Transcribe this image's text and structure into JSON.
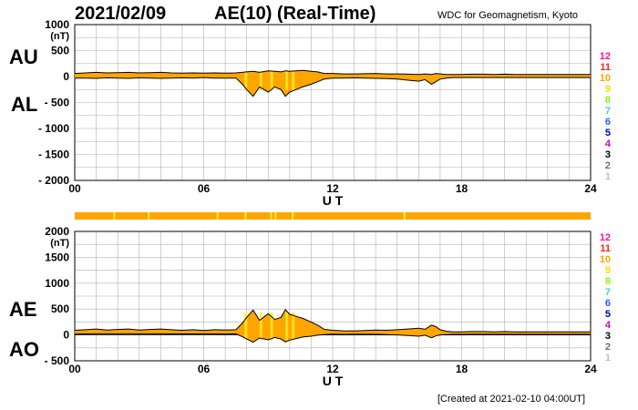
{
  "header": {
    "date": "2021/02/09",
    "title": "AE(10) (Real-Time)",
    "source": "WDC for Geomagnetism, Kyoto",
    "created": "[Created at 2021-02-10 04:00UT]"
  },
  "panel_labels": {
    "au": "AU",
    "al": "AL",
    "ae": "AE",
    "ao": "AO"
  },
  "colors": {
    "fill_orange": "#FFA500",
    "fill_yellow": "#FFEE22",
    "line": "#000000",
    "grid": "#b0b0b0"
  },
  "station_count_legend": [
    {
      "label": "12",
      "color": "#ff1493"
    },
    {
      "label": "11",
      "color": "#ff2020"
    },
    {
      "label": "10",
      "color": "#ffa500"
    },
    {
      "label": "9",
      "color": "#f0e000"
    },
    {
      "label": "8",
      "color": "#90ee20"
    },
    {
      "label": "7",
      "color": "#40d0e0"
    },
    {
      "label": "6",
      "color": "#2060ff"
    },
    {
      "label": "5",
      "color": "#0000b0"
    },
    {
      "label": "4",
      "color": "#d000d0"
    },
    {
      "label": "3",
      "color": "#000000"
    },
    {
      "label": "2",
      "color": "#707070"
    },
    {
      "label": "1",
      "color": "#c0c0c0"
    }
  ],
  "chart_data": [
    {
      "type": "area",
      "panel": "AU/AL",
      "xlabel": "U T",
      "ylabel": "(nT)",
      "xlim": [
        0,
        24
      ],
      "ylim": [
        -2000,
        1000
      ],
      "xticks": [
        "00",
        "06",
        "12",
        "18",
        "24"
      ],
      "yticks": [
        "1000",
        "500",
        "0",
        "- 500",
        "- 1000",
        "- 1500",
        "- 2000"
      ],
      "ytick_values": [
        1000,
        500,
        0,
        -500,
        -1000,
        -1500,
        -2000
      ],
      "x": [
        0,
        0.5,
        1,
        1.5,
        2,
        2.5,
        3,
        3.5,
        4,
        4.5,
        5,
        5.5,
        6,
        6.5,
        7,
        7.5,
        7.8,
        8,
        8.3,
        8.6,
        9,
        9.3,
        9.6,
        9.8,
        10,
        10.3,
        10.6,
        11,
        11.3,
        11.6,
        12,
        12.5,
        13,
        13.5,
        14,
        14.5,
        15,
        15.5,
        16,
        16.3,
        16.6,
        16.8,
        17,
        17.3,
        17.6,
        18,
        18.5,
        19,
        19.5,
        20,
        20.5,
        21,
        21.5,
        22,
        22.5,
        23,
        23.5,
        24
      ],
      "series": [
        {
          "name": "AU",
          "values": [
            60,
            70,
            80,
            70,
            75,
            80,
            70,
            75,
            80,
            70,
            65,
            70,
            65,
            70,
            65,
            70,
            80,
            90,
            100,
            80,
            110,
            100,
            90,
            110,
            100,
            110,
            120,
            100,
            90,
            60,
            60,
            50,
            50,
            55,
            60,
            50,
            50,
            45,
            40,
            50,
            40,
            60,
            50,
            40,
            40,
            40,
            45,
            45,
            40,
            45,
            40,
            40,
            40,
            40,
            40,
            40,
            40,
            40
          ]
        },
        {
          "name": "AL",
          "values": [
            -30,
            -30,
            -35,
            -25,
            -30,
            -35,
            -25,
            -30,
            -35,
            -30,
            -25,
            -30,
            -20,
            -30,
            -30,
            -30,
            -150,
            -250,
            -380,
            -200,
            -300,
            -200,
            -250,
            -380,
            -300,
            -250,
            -200,
            -150,
            -100,
            -50,
            -30,
            -30,
            -25,
            -30,
            -35,
            -40,
            -50,
            -70,
            -90,
            -60,
            -150,
            -100,
            -50,
            -30,
            -20,
            -20,
            -20,
            -20,
            -20,
            -20,
            -20,
            -20,
            -20,
            -20,
            -20,
            -20,
            -20,
            -20
          ]
        }
      ]
    },
    {
      "type": "area",
      "panel": "AE/AO",
      "xlabel": "U T",
      "ylabel": "(nT)",
      "xlim": [
        0,
        24
      ],
      "ylim": [
        -500,
        2000
      ],
      "xticks": [
        "00",
        "06",
        "12",
        "18",
        "24"
      ],
      "yticks": [
        "2000",
        "1500",
        "1000",
        "500",
        "0",
        "- 500"
      ],
      "ytick_values": [
        2000,
        1500,
        1000,
        500,
        0,
        -500
      ],
      "x": [
        0,
        0.5,
        1,
        1.5,
        2,
        2.5,
        3,
        3.5,
        4,
        4.5,
        5,
        5.5,
        6,
        6.5,
        7,
        7.5,
        7.8,
        8,
        8.3,
        8.6,
        9,
        9.3,
        9.6,
        9.8,
        10,
        10.3,
        10.6,
        11,
        11.3,
        11.6,
        12,
        12.5,
        13,
        13.5,
        14,
        14.5,
        15,
        15.5,
        16,
        16.3,
        16.6,
        16.8,
        17,
        17.3,
        17.6,
        18,
        18.5,
        19,
        19.5,
        20,
        20.5,
        21,
        21.5,
        22,
        22.5,
        23,
        23.5,
        24
      ],
      "series": [
        {
          "name": "AE",
          "values": [
            90,
            100,
            115,
            95,
            105,
            115,
            95,
            105,
            115,
            100,
            90,
            100,
            85,
            100,
            95,
            100,
            230,
            340,
            480,
            280,
            410,
            300,
            340,
            490,
            400,
            360,
            320,
            250,
            190,
            110,
            90,
            80,
            75,
            85,
            95,
            90,
            100,
            115,
            130,
            110,
            190,
            160,
            100,
            70,
            60,
            60,
            65,
            65,
            60,
            65,
            60,
            60,
            60,
            60,
            60,
            60,
            60,
            60
          ]
        },
        {
          "name": "AO",
          "values": [
            15,
            20,
            22,
            22,
            22,
            22,
            22,
            22,
            22,
            20,
            20,
            20,
            22,
            20,
            18,
            20,
            -35,
            -80,
            -140,
            -60,
            -95,
            -50,
            -80,
            -135,
            -100,
            -70,
            -40,
            -25,
            -5,
            5,
            15,
            10,
            12,
            12,
            12,
            5,
            0,
            -12,
            -25,
            -5,
            -55,
            -20,
            0,
            5,
            10,
            10,
            12,
            12,
            10,
            12,
            10,
            10,
            10,
            10,
            10,
            10,
            10,
            10
          ]
        }
      ]
    }
  ]
}
